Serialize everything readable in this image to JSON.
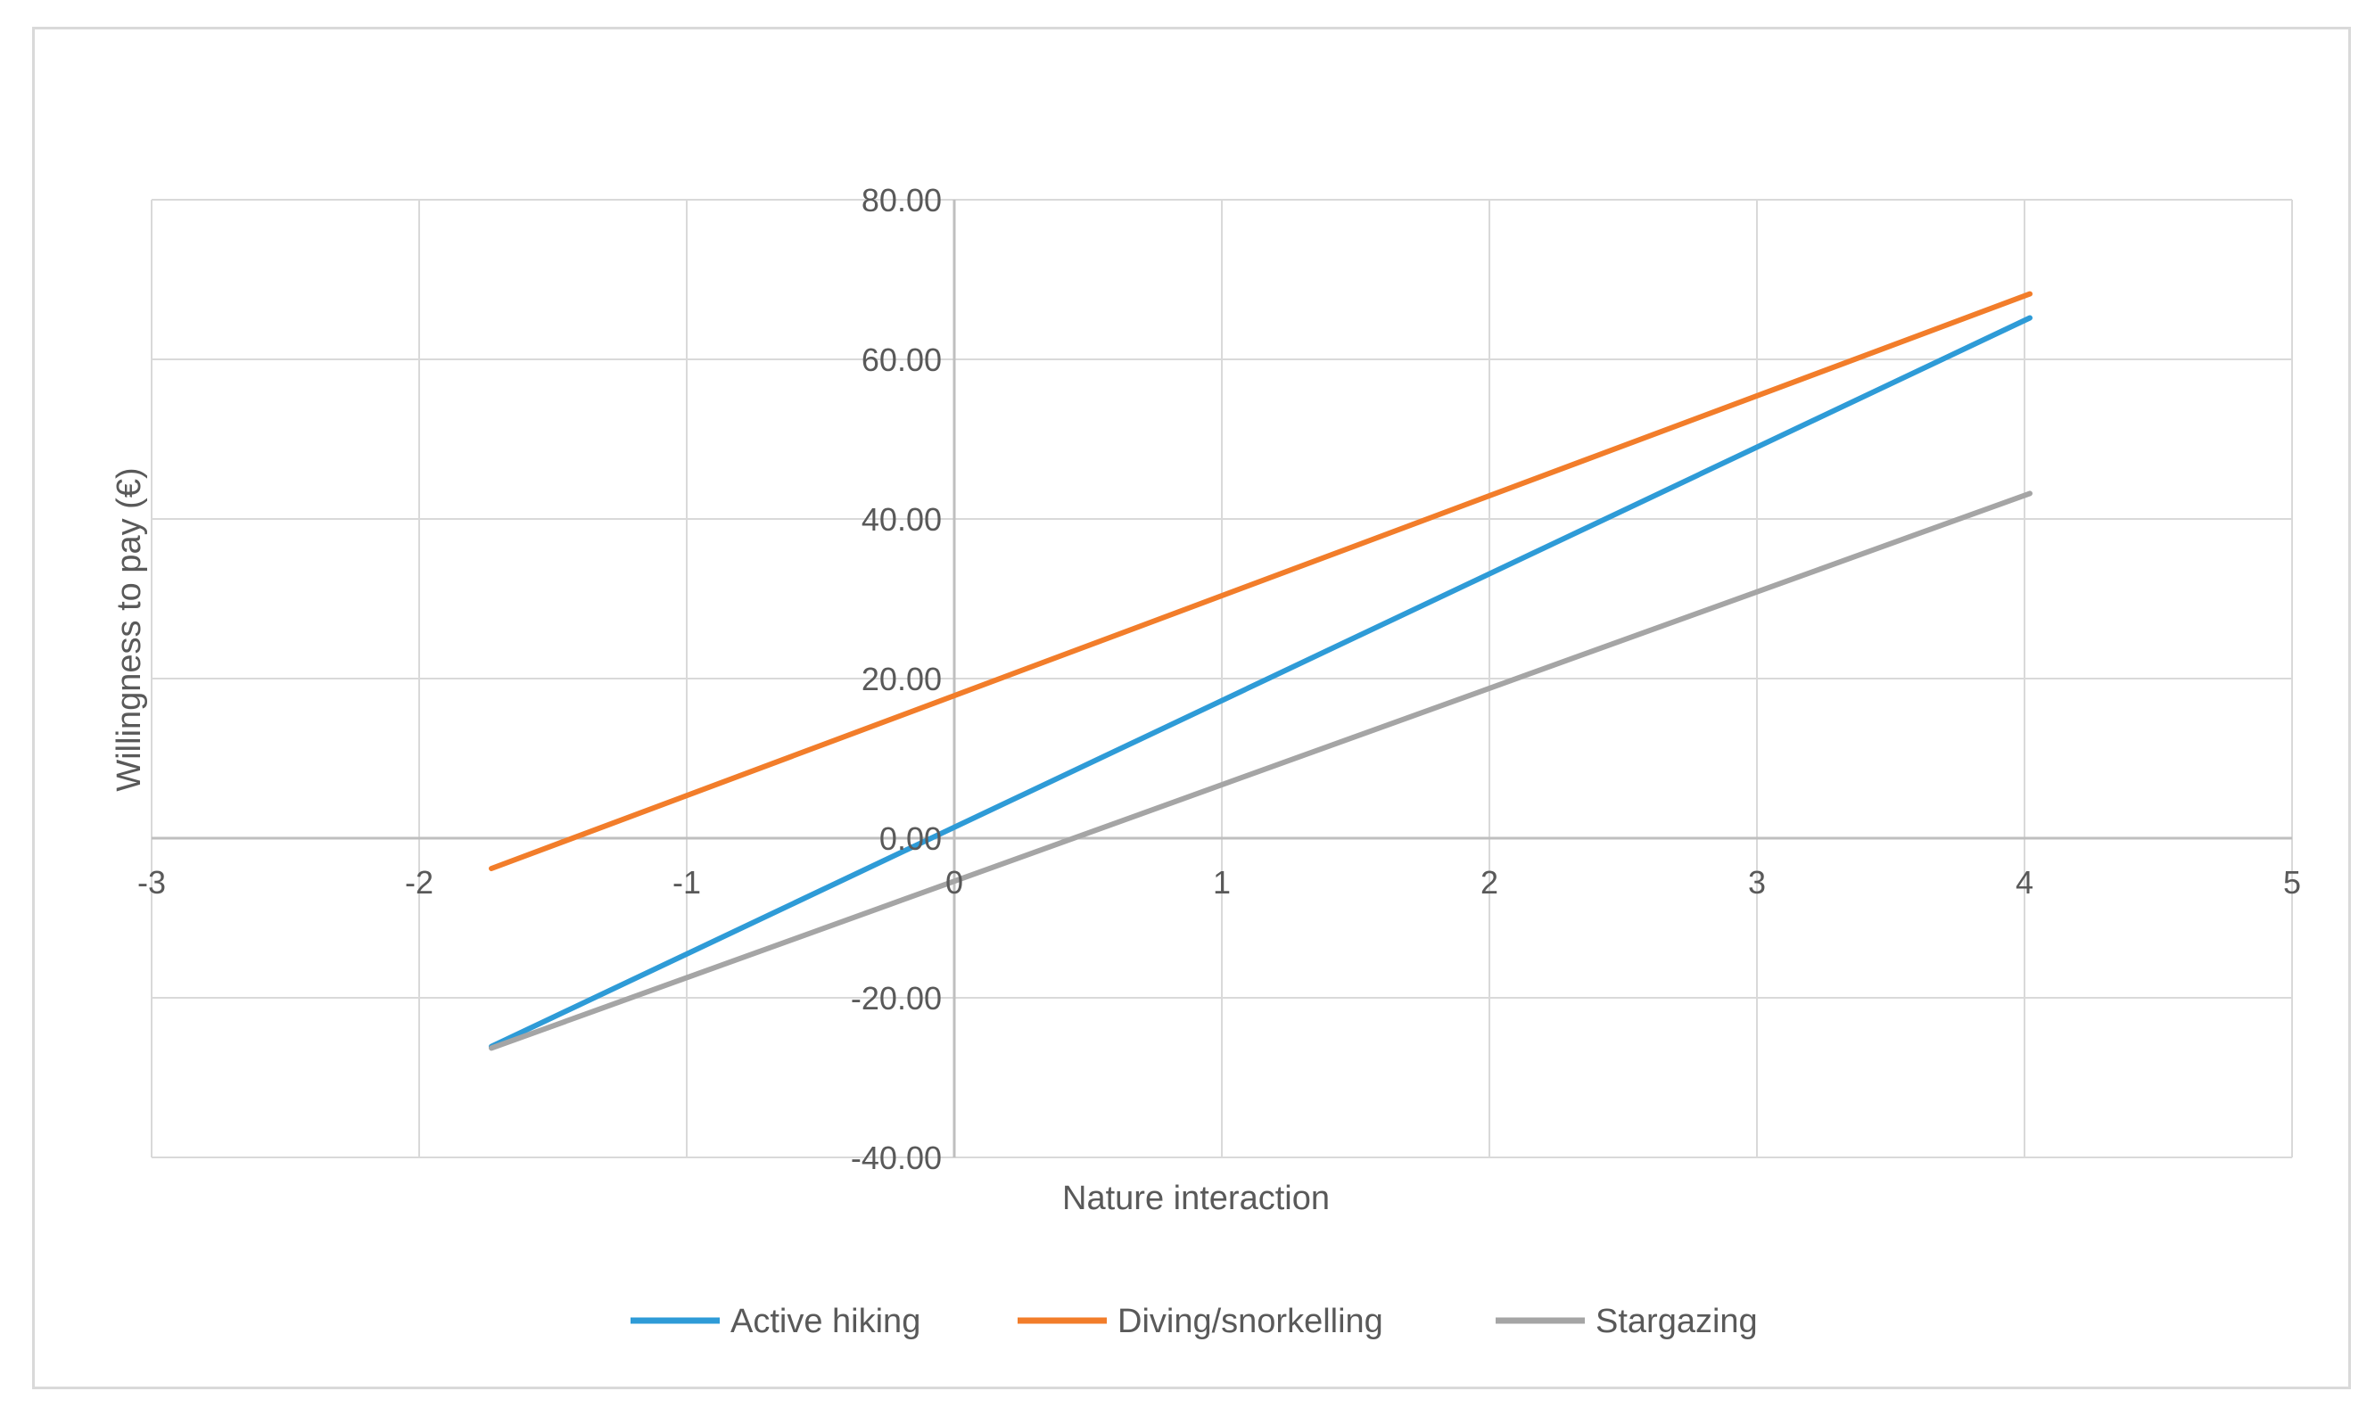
{
  "chart_data": {
    "type": "line",
    "title": "",
    "xlabel": "Nature interaction",
    "ylabel": "Willingness to pay (€)",
    "xlim": [
      -3,
      5
    ],
    "ylim": [
      -40,
      80
    ],
    "x_ticks": [
      -3,
      -2,
      -1,
      0,
      1,
      2,
      3,
      4,
      5
    ],
    "x_tick_labels": [
      "-3",
      "-2",
      "-1",
      "0",
      "1",
      "2",
      "3",
      "4",
      "5"
    ],
    "y_ticks": [
      -40,
      -20,
      0,
      20,
      40,
      60,
      80
    ],
    "y_tick_labels": [
      "-40.00",
      "-20.00",
      "0.00",
      "20.00",
      "40.00",
      "60.00",
      "80.00"
    ],
    "grid": true,
    "legend_position": "bottom",
    "series": [
      {
        "name": "Active hiking",
        "color": "#2e9bd7",
        "points": [
          [
            -1.73,
            -26.1
          ],
          [
            4.02,
            65.2
          ]
        ]
      },
      {
        "name": "Diving/snorkelling",
        "color": "#f27d2a",
        "points": [
          [
            -1.73,
            -3.8
          ],
          [
            4.02,
            68.2
          ]
        ]
      },
      {
        "name": "Stargazing",
        "color": "#a5a5a5",
        "points": [
          [
            -1.73,
            -26.3
          ],
          [
            4.02,
            43.2
          ]
        ]
      }
    ]
  }
}
